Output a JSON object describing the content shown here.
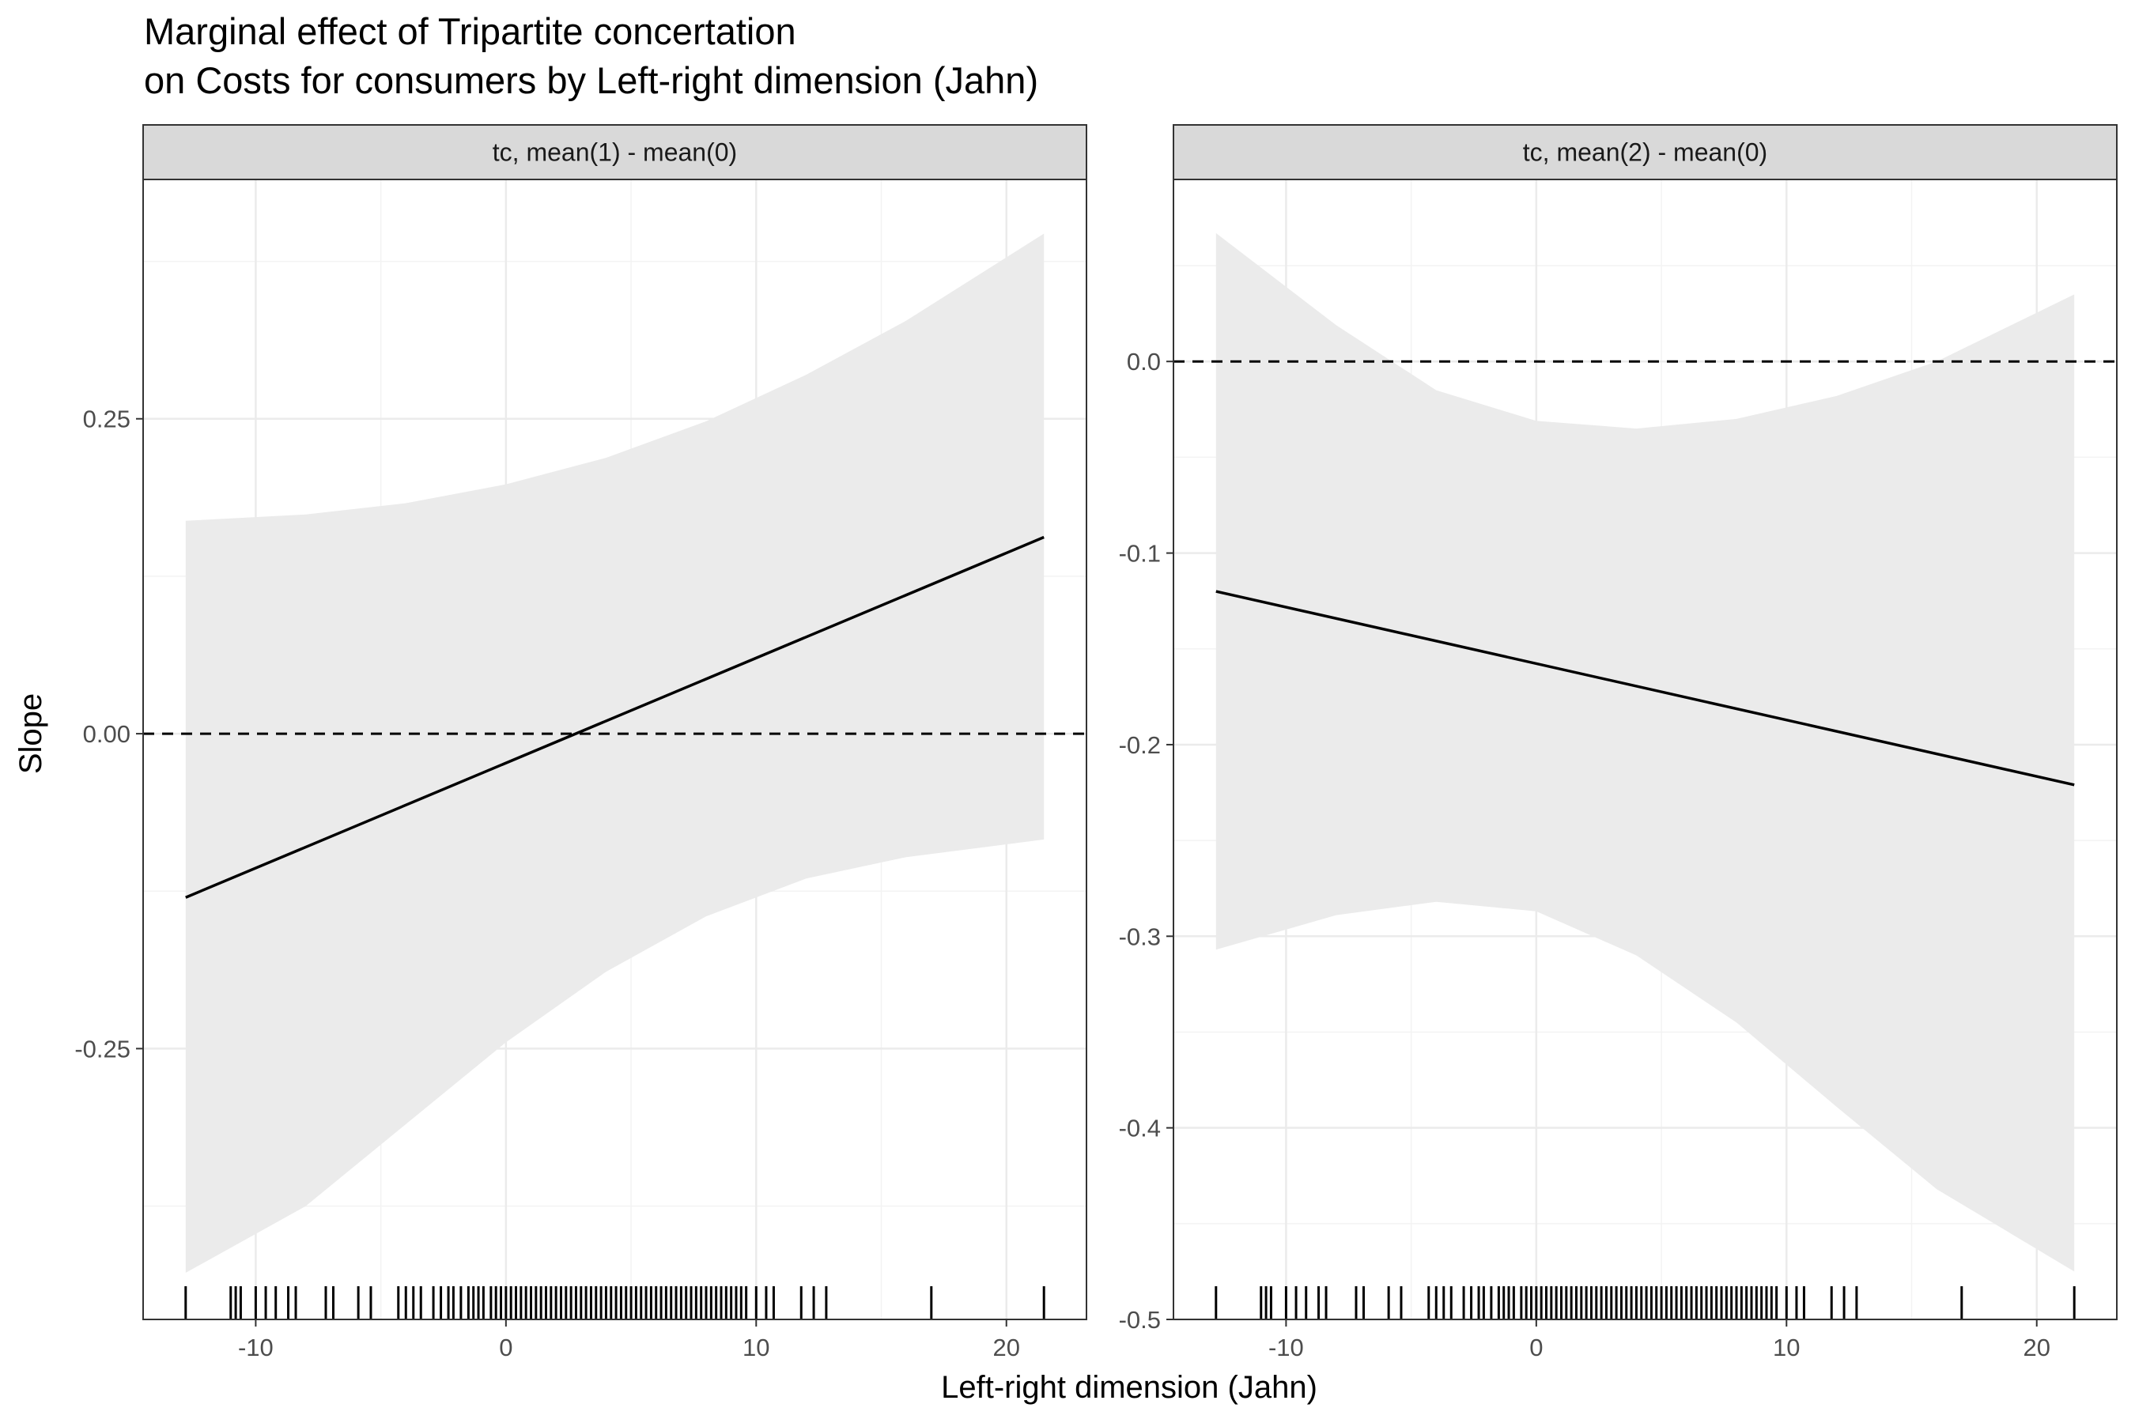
{
  "chart_data": {
    "type": "line",
    "title_lines": [
      "Marginal effect of Tripartite concertation",
      "on Costs for consumers by Left-right dimension (Jahn)"
    ],
    "xlabel": "Left-right dimension (Jahn)",
    "ylabel": "Slope",
    "x_ticks": [
      -10,
      0,
      10,
      20
    ],
    "x_tick_labels": [
      "-10",
      "0",
      "10",
      "20"
    ],
    "xlim": [
      -14.5,
      23.2
    ],
    "reference_line_y": 0,
    "colors": {
      "ribbon": "#ebebeb",
      "line": "#000000",
      "strip_bg": "#d9d9d9",
      "grid": "#ebebeb"
    },
    "panels": [
      {
        "strip_label": "tc, mean(1) - mean(0)",
        "ylim": [
          -0.465,
          0.44
        ],
        "y_ticks": [
          -0.25,
          0.0,
          0.25
        ],
        "y_tick_labels": [
          "-0.25",
          "0.00",
          "0.25"
        ],
        "line": {
          "x": [
            -12.8,
            21.5
          ],
          "y": [
            -0.13,
            0.156
          ]
        },
        "ribbon": {
          "x": [
            -12.8,
            -8,
            -4,
            0,
            4,
            8,
            12,
            16,
            21.5
          ],
          "upper": [
            0.169,
            0.174,
            0.183,
            0.198,
            0.219,
            0.248,
            0.285,
            0.328,
            0.397
          ],
          "lower": [
            -0.428,
            -0.375,
            -0.31,
            -0.245,
            -0.189,
            -0.145,
            -0.115,
            -0.098,
            -0.084
          ]
        }
      },
      {
        "strip_label": "tc, mean(2) - mean(0)",
        "ylim": [
          -0.5,
          0.095
        ],
        "y_ticks": [
          -0.5,
          -0.4,
          -0.3,
          -0.2,
          -0.1,
          0.0
        ],
        "y_tick_labels": [
          "-0.5",
          "-0.4",
          "-0.3",
          "-0.2",
          "-0.1",
          "0.0"
        ],
        "line": {
          "x": [
            -12.8,
            21.5
          ],
          "y": [
            -0.12,
            -0.221
          ]
        },
        "ribbon": {
          "x": [
            -12.8,
            -8,
            -4,
            0,
            4,
            8,
            12,
            16,
            21.5
          ],
          "upper": [
            0.067,
            0.019,
            -0.015,
            -0.031,
            -0.035,
            -0.03,
            -0.018,
            0.0,
            0.035
          ],
          "lower": [
            -0.307,
            -0.289,
            -0.282,
            -0.287,
            -0.31,
            -0.345,
            -0.389,
            -0.432,
            -0.475
          ]
        }
      }
    ],
    "rug_x": [
      -12.8,
      -11,
      -10.8,
      -10.6,
      -10,
      -9.6,
      -9.2,
      -8.7,
      -8.4,
      -7.2,
      -6.9,
      -5.9,
      -5.4,
      -4.3,
      -4.0,
      -3.7,
      -3.4,
      -2.9,
      -2.6,
      -2.3,
      -2.1,
      -1.8,
      -1.5,
      -1.3,
      -1.1,
      -0.9,
      -0.6,
      -0.4,
      -0.2,
      0.0,
      0.2,
      0.4,
      0.6,
      0.8,
      1.0,
      1.2,
      1.4,
      1.6,
      1.8,
      2.0,
      2.2,
      2.4,
      2.6,
      2.8,
      3.0,
      3.2,
      3.4,
      3.6,
      3.8,
      4.0,
      4.2,
      4.4,
      4.6,
      4.8,
      5.0,
      5.2,
      5.4,
      5.6,
      5.8,
      6.0,
      6.2,
      6.4,
      6.6,
      6.8,
      7.0,
      7.2,
      7.4,
      7.6,
      7.8,
      8.0,
      8.2,
      8.4,
      8.6,
      8.8,
      9.0,
      9.2,
      9.4,
      9.6,
      10.0,
      10.4,
      10.7,
      11.8,
      12.3,
      12.8,
      17.0,
      21.5
    ]
  }
}
